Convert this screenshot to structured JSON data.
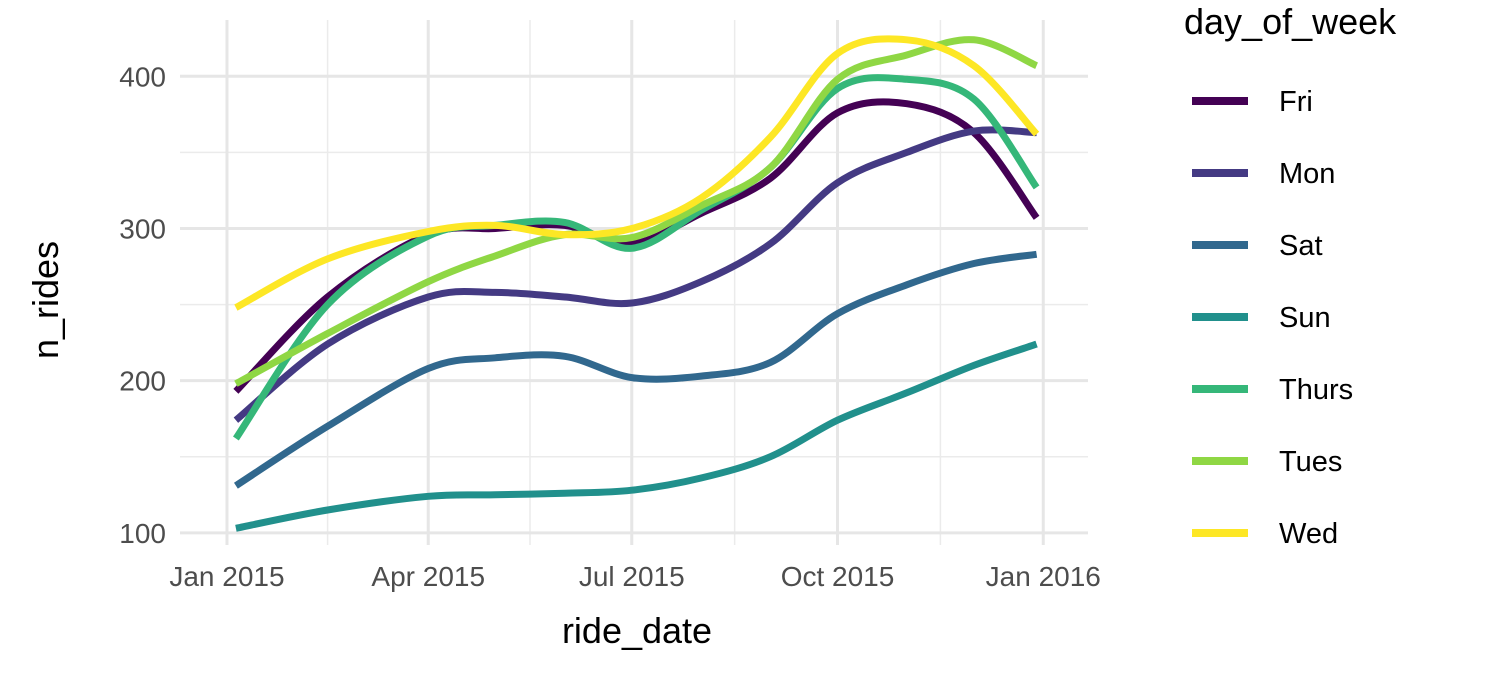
{
  "chart_data": {
    "type": "line",
    "xlabel": "ride_date",
    "ylabel": "n_rides",
    "x_ticks": [
      "Jan 2015",
      "Apr 2015",
      "Jul 2015",
      "Oct 2015",
      "Jan 2016"
    ],
    "x_tick_dates": [
      "2015-01-01",
      "2015-04-01",
      "2015-07-01",
      "2015-10-01",
      "2016-01-01"
    ],
    "xlim": [
      "2014-12-11",
      "2016-01-21"
    ],
    "y_ticks": [
      100,
      200,
      300,
      400
    ],
    "ylim": [
      92,
      437
    ],
    "grid": true,
    "legend": {
      "title": "day_of_week",
      "position": "right"
    },
    "x": [
      "2015-01-05",
      "2015-02-15",
      "2015-04-01",
      "2015-05-01",
      "2015-06-01",
      "2015-07-01",
      "2015-08-01",
      "2015-09-01",
      "2015-10-01",
      "2015-11-01",
      "2015-12-01",
      "2015-12-29"
    ],
    "series": [
      {
        "name": "Fri",
        "color": "#440154",
        "values": [
          193,
          255,
          296,
          300,
          302,
          290,
          310,
          333,
          376,
          382,
          363,
          307
        ]
      },
      {
        "name": "Mon",
        "color": "#443A83",
        "values": [
          174,
          224,
          255,
          258,
          255,
          251,
          265,
          290,
          330,
          350,
          364,
          363
        ]
      },
      {
        "name": "Sat",
        "color": "#31688E",
        "values": [
          131,
          170,
          208,
          215,
          216,
          202,
          203,
          212,
          244,
          263,
          277,
          283
        ]
      },
      {
        "name": "Sun",
        "color": "#21908C",
        "values": [
          103,
          115,
          124,
          125,
          126,
          128,
          136,
          150,
          174,
          192,
          210,
          224
        ]
      },
      {
        "name": "Thurs",
        "color": "#35B779",
        "values": [
          162,
          250,
          295,
          302,
          304,
          287,
          312,
          340,
          392,
          398,
          385,
          327
        ]
      },
      {
        "name": "Tues",
        "color": "#8FD744",
        "values": [
          198,
          231,
          265,
          282,
          296,
          294,
          315,
          340,
          398,
          414,
          424,
          407
        ]
      },
      {
        "name": "Wed",
        "color": "#FDE725",
        "values": [
          248,
          280,
          298,
          302,
          296,
          300,
          320,
          360,
          415,
          424,
          407,
          362
        ]
      }
    ]
  }
}
